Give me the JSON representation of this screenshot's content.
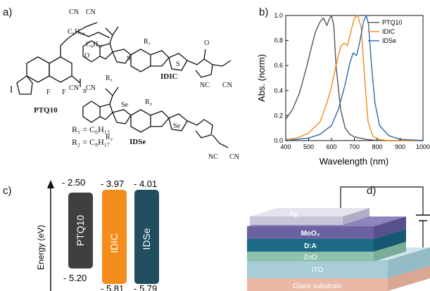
{
  "panels": {
    "a": "a)",
    "b": "b)",
    "c": "c)",
    "d": "d)"
  },
  "structures": {
    "ptq10": {
      "name": "PTQ10",
      "chain_top": "C₆H₁₃",
      "chain_bottom": "C₈H₁₇",
      "f": "F",
      "n": "n"
    },
    "idic": {
      "name": "IDIC",
      "r1": "R₁",
      "cn": "CN",
      "nc": "NC",
      "s": "S",
      "o": "O"
    },
    "idse": {
      "name": "IDSe",
      "r2": "R₂",
      "se": "Se"
    },
    "r1_def": "R₁ = C₆H₁₃",
    "r2_def": "R₂ = C₈H₁₇"
  },
  "energy_diagram": {
    "axis_label": "Energy (eV)",
    "bars": [
      {
        "name": "PTQ10",
        "lumo": "- 2.50",
        "homo": "- 5.20",
        "color": "#3f3f3f"
      },
      {
        "name": "IDIC",
        "lumo": "- 3.97",
        "homo": "- 5.81",
        "color": "#f28c1a"
      },
      {
        "name": "IDSe",
        "lumo": "- 4.01",
        "homo": "- 5.79",
        "color": "#204e5e"
      }
    ]
  },
  "device": {
    "layers": [
      {
        "label": "Glass substrate",
        "color": "#e9b9a6"
      },
      {
        "label": "ITO",
        "color": "#a9cdd6"
      },
      {
        "label": "ZnO",
        "color": "#8ec1ae"
      },
      {
        "label": "D:A",
        "color": "#1d6a87"
      },
      {
        "label": "MoO₃",
        "color": "#6a62a1"
      },
      {
        "label": "Ag",
        "color": "#c9c5da"
      }
    ]
  },
  "chart_data": {
    "type": "line",
    "xlabel": "Wavelength (nm)",
    "ylabel": "Abs. (norm)",
    "xlim": [
      400,
      1000
    ],
    "ylim": [
      0,
      1.0
    ],
    "xticks": [
      400,
      500,
      600,
      700,
      800,
      900,
      1000
    ],
    "yticks": [
      0.0,
      0.2,
      0.4,
      0.6,
      0.8,
      1.0
    ],
    "xtick_labels": [
      "400",
      "500",
      "600",
      "700",
      "800",
      "900",
      "1000"
    ],
    "ytick_labels": [
      "0.0",
      "0.2",
      "0.4",
      "0.6",
      "0.8",
      "1.0"
    ],
    "legend_position": "top-right",
    "series": [
      {
        "name": "PTQ10",
        "color": "#555555",
        "x": [
          400,
          430,
          460,
          490,
          510,
          530,
          550,
          565,
          580,
          590,
          600,
          610,
          620,
          640,
          660,
          680,
          700,
          750,
          800,
          1000
        ],
        "y": [
          0.17,
          0.25,
          0.38,
          0.58,
          0.73,
          0.87,
          0.95,
          0.98,
          0.92,
          0.97,
          1.0,
          0.92,
          0.6,
          0.25,
          0.1,
          0.05,
          0.03,
          0.01,
          0.0,
          0.0
        ]
      },
      {
        "name": "IDIC",
        "color": "#f28c1a",
        "x": [
          400,
          450,
          500,
          550,
          580,
          600,
          620,
          640,
          655,
          670,
          685,
          700,
          715,
          730,
          745,
          760,
          780,
          800,
          850,
          1000
        ],
        "y": [
          0.01,
          0.02,
          0.06,
          0.15,
          0.3,
          0.43,
          0.6,
          0.75,
          0.78,
          0.76,
          0.87,
          0.98,
          1.0,
          0.9,
          0.5,
          0.15,
          0.04,
          0.01,
          0.0,
          0.0
        ]
      },
      {
        "name": "IDSe",
        "color": "#2f6aa8",
        "x": [
          400,
          450,
          500,
          550,
          600,
          630,
          660,
          680,
          695,
          710,
          725,
          740,
          752,
          762,
          775,
          790,
          810,
          850,
          900,
          1000
        ],
        "y": [
          0.0,
          0.01,
          0.02,
          0.05,
          0.12,
          0.25,
          0.45,
          0.62,
          0.7,
          0.68,
          0.8,
          0.95,
          1.0,
          0.93,
          0.6,
          0.3,
          0.12,
          0.04,
          0.01,
          0.0
        ]
      }
    ]
  }
}
